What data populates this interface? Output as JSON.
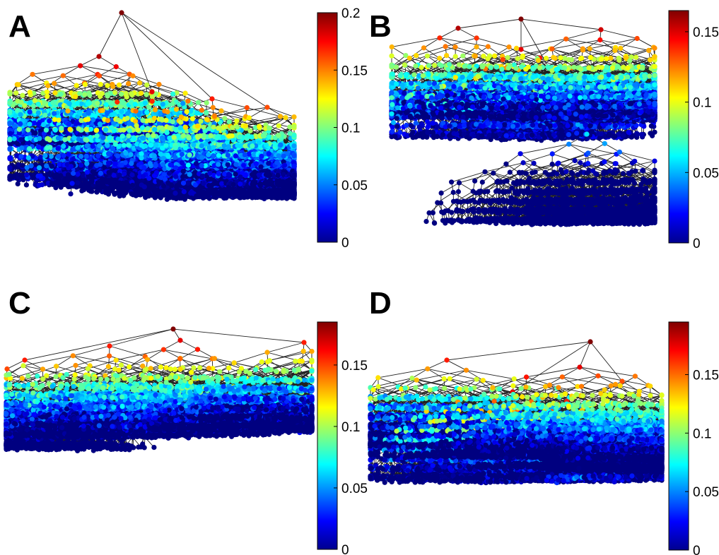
{
  "figure": {
    "panels": [
      {
        "letter": "A",
        "colorbar": {
          "min": 0,
          "max": 0.2,
          "ticks": [
            {
              "value": 0,
              "label": "0"
            },
            {
              "value": 0.05,
              "label": "0.05"
            },
            {
              "value": 0.1,
              "label": "0.1"
            },
            {
              "value": 0.15,
              "label": "0.15"
            },
            {
              "value": 0.2,
              "label": "0.2"
            }
          ]
        }
      },
      {
        "letter": "B",
        "colorbar": {
          "min": 0,
          "max": 0.165,
          "ticks": [
            {
              "value": 0,
              "label": "0"
            },
            {
              "value": 0.05,
              "label": "0.05"
            },
            {
              "value": 0.1,
              "label": "0.1"
            },
            {
              "value": 0.15,
              "label": "0.15"
            }
          ]
        }
      },
      {
        "letter": "C",
        "colorbar": {
          "min": 0,
          "max": 0.185,
          "ticks": [
            {
              "value": 0,
              "label": "0"
            },
            {
              "value": 0.05,
              "label": "0.05"
            },
            {
              "value": 0.1,
              "label": "0.1"
            },
            {
              "value": 0.15,
              "label": "0.15"
            }
          ]
        }
      },
      {
        "letter": "D",
        "colorbar": {
          "min": 0,
          "max": 0.195,
          "ticks": [
            {
              "value": 0,
              "label": "0"
            },
            {
              "value": 0.05,
              "label": "0.05"
            },
            {
              "value": 0.1,
              "label": "0.1"
            },
            {
              "value": 0.15,
              "label": "0.15"
            }
          ]
        }
      }
    ],
    "colormap": "jet",
    "colors": {
      "edge": "#222222",
      "background": "#ffffff"
    }
  }
}
